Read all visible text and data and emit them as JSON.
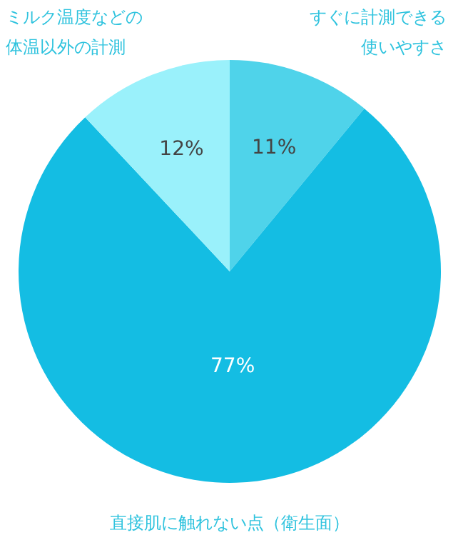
{
  "chart_data": {
    "type": "pie",
    "categories": [
      "すぐに計測できる使いやすさ",
      "直接肌に触れない点（衛生面）",
      "ミルク温度などの体温以外の計測"
    ],
    "values": [
      11,
      77,
      12
    ],
    "colors": [
      "#4fd3ea",
      "#14bde3",
      "#9af1fb"
    ],
    "value_labels": [
      "11%",
      "77%",
      "12%"
    ]
  }
}
